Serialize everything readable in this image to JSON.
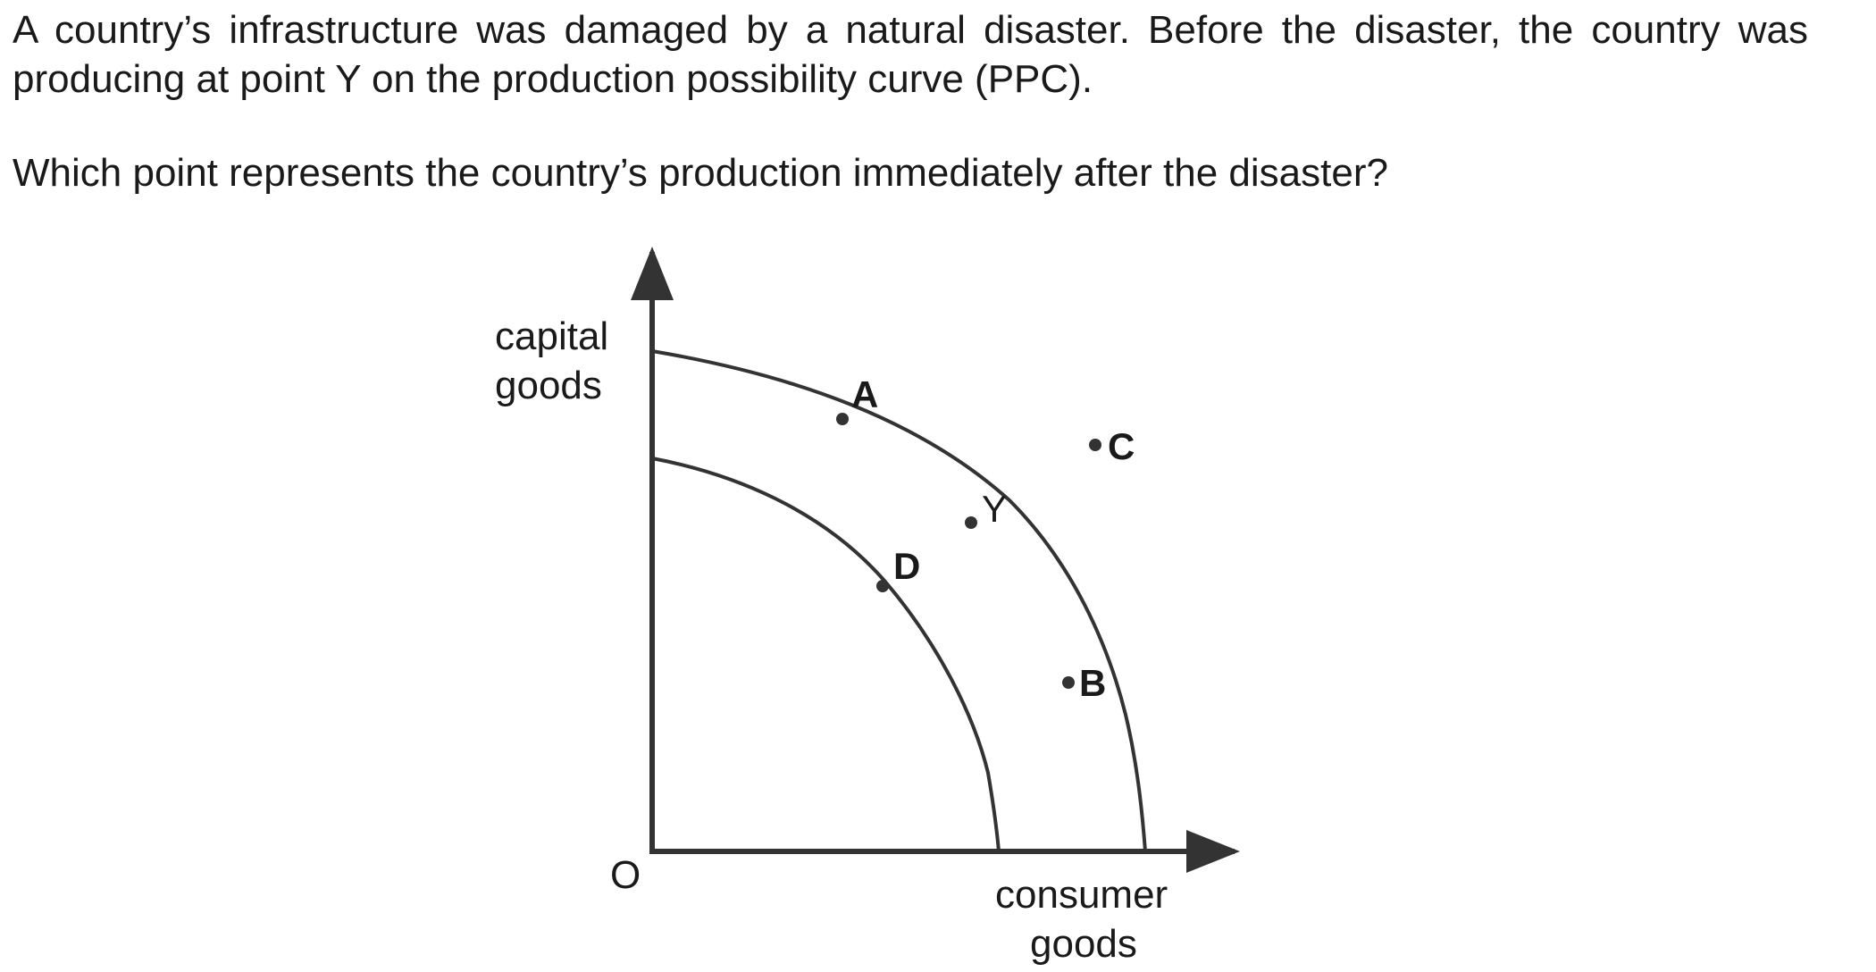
{
  "question": {
    "stem": "A country’s infrastructure was damaged by a natural disaster. Before the disaster, the country was producing at point Y on the production possibility curve (PPC).",
    "prompt": "Which point represents the country’s production immediately after the disaster?"
  },
  "diagram": {
    "y_axis_label_line1": "capital",
    "y_axis_label_line2": "goods",
    "x_axis_label_line1": "consumer",
    "x_axis_label_line2": "goods",
    "origin_label": "O",
    "points": {
      "A": "A",
      "Y": "Y",
      "C": "C",
      "D": "D",
      "B": "B"
    }
  }
}
